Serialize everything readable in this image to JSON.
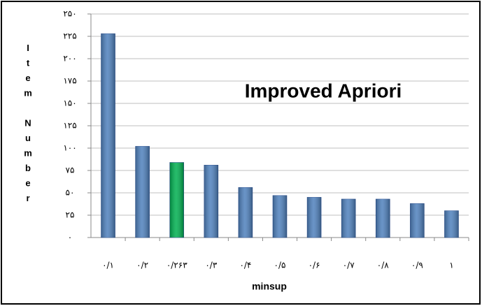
{
  "chart_data": {
    "type": "bar",
    "title": "Improved Apriori",
    "xlabel": "minsup",
    "ylabel": "Item Number",
    "categories": [
      "۰/۱",
      "۰/۲",
      "۰/۲۶۳",
      "۰/۳",
      "۰/۴",
      "۰/۵",
      "۰/۶",
      "۰/۷",
      "۰/۸",
      "۰/۹",
      "۱"
    ],
    "values": [
      228,
      102,
      84,
      81,
      56,
      47,
      45,
      43,
      43,
      38,
      30
    ],
    "colors": [
      "#4f81bd",
      "#4f81bd",
      "#00b050",
      "#4f81bd",
      "#4f81bd",
      "#4f81bd",
      "#4f81bd",
      "#4f81bd",
      "#4f81bd",
      "#4f81bd",
      "#4f81bd"
    ],
    "ylim": [
      0,
      250
    ],
    "yticks": [
      {
        "value": 0,
        "label": "۰"
      },
      {
        "value": 25,
        "label": "۲۵"
      },
      {
        "value": 50,
        "label": "۵۰"
      },
      {
        "value": 75,
        "label": "۷۵"
      },
      {
        "value": 100,
        "label": "۱۰۰"
      },
      {
        "value": 125,
        "label": "۱۲۵"
      },
      {
        "value": 150,
        "label": "۱۵۰"
      },
      {
        "value": 175,
        "label": "۱۷۵"
      },
      {
        "value": 200,
        "label": "۲۰۰"
      },
      {
        "value": 225,
        "label": "۲۲۵"
      },
      {
        "value": 250,
        "label": "۲۵۰"
      }
    ],
    "grid": true
  }
}
